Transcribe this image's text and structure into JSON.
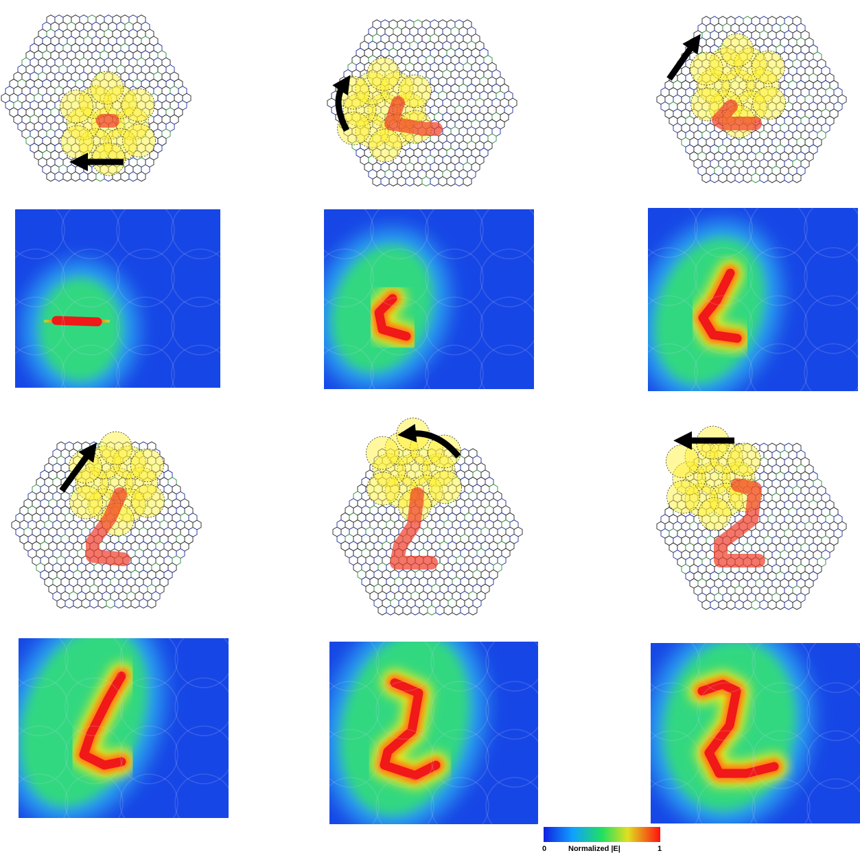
{
  "colorbar": {
    "min_label": 0,
    "title": "Normalized |E|",
    "max_label": 1
  }
}
